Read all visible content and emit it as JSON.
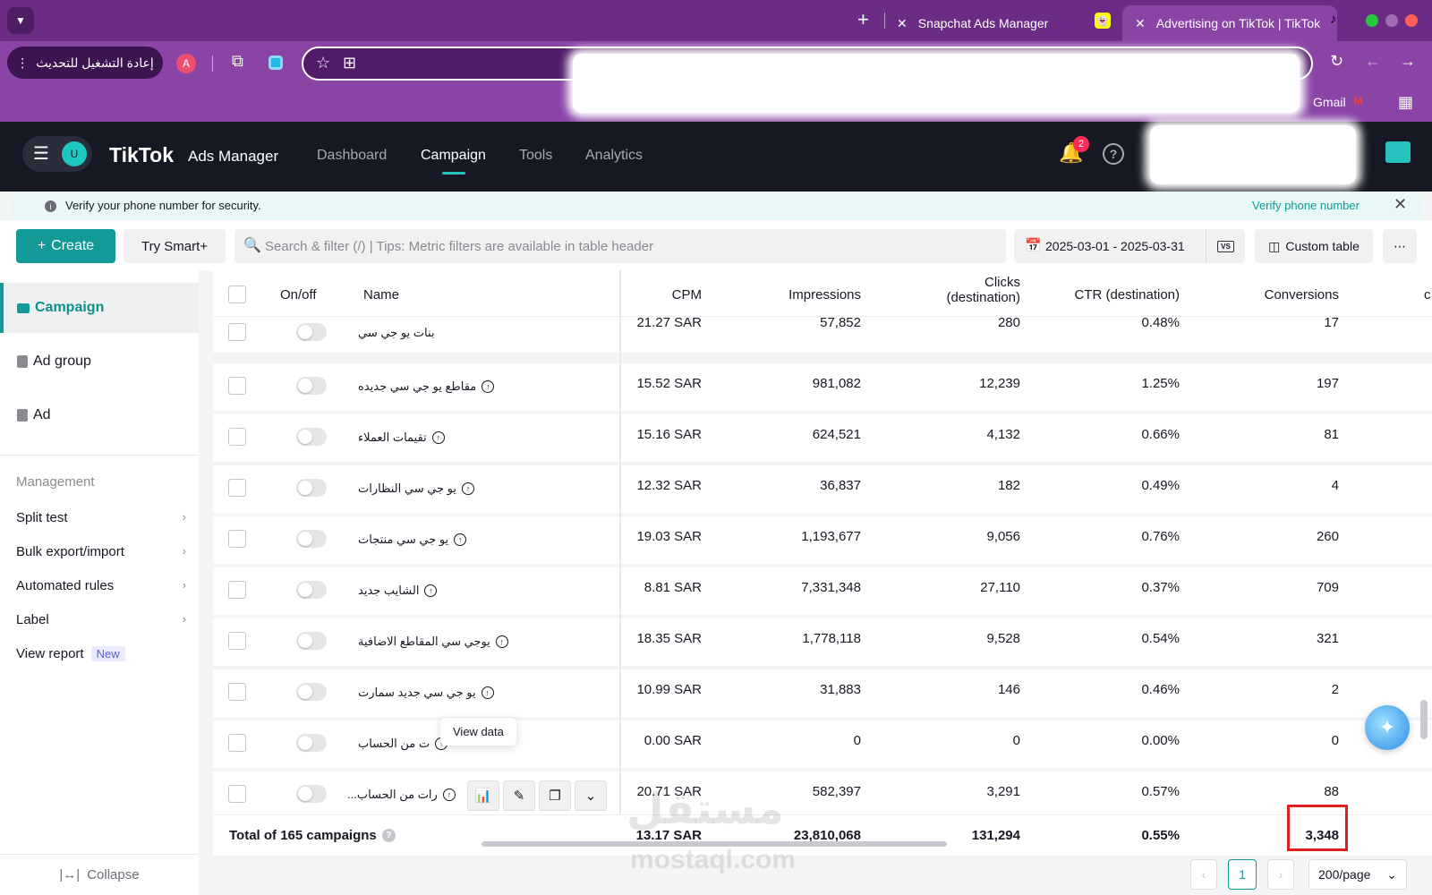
{
  "browser": {
    "tabs": [
      {
        "label": "Snapchat Ads Manager"
      },
      {
        "label": "Advertising on TikTok | TikTok"
      }
    ],
    "restart_label": "إعادة التشغيل للتحديث",
    "profile_initial": "A",
    "gmail_label": "Gmail"
  },
  "header": {
    "user_initial": "U",
    "logo_text": "TikTok",
    "logo_sub": "Ads Manager",
    "nav": [
      "Dashboard",
      "Campaign",
      "Tools",
      "Analytics"
    ],
    "active_nav": "Campaign",
    "notification_count": "2"
  },
  "banner": {
    "message": "Verify your phone number for security.",
    "link": "Verify phone number"
  },
  "actionbar": {
    "create_label": "Create",
    "smart_label": "Try Smart+",
    "search_placeholder": "Search & filter (/) | Tips: Metric filters are available in table header",
    "date_range": "2025-03-01 - 2025-03-31",
    "vs_label": "VS",
    "custom_table_label": "Custom table"
  },
  "sidebar": {
    "levels": [
      "Campaign",
      "Ad group",
      "Ad"
    ],
    "management_title": "Management",
    "management_items": [
      "Split test",
      "Bulk export/import",
      "Automated rules",
      "Label",
      "View report"
    ],
    "new_badge": "New",
    "collapse_label": "Collapse"
  },
  "table": {
    "headers": {
      "onoff": "On/off",
      "name": "Name",
      "cpm": "CPM",
      "impressions": "Impressions",
      "clicks": "Clicks",
      "clicks_sub": "(destination)",
      "ctr": "CTR (destination)",
      "conversions": "Conversions"
    },
    "rows": [
      {
        "name": "بنات يو جي سي",
        "cpm": "21.27 SAR",
        "impressions": "57,852",
        "clicks": "280",
        "ctr": "0.48%",
        "conversions": "17"
      },
      {
        "name": "مقاطع يو جي سي جديده",
        "cpm": "15.52 SAR",
        "impressions": "981,082",
        "clicks": "12,239",
        "ctr": "1.25%",
        "conversions": "197"
      },
      {
        "name": "تقيمات العملاء",
        "cpm": "15.16 SAR",
        "impressions": "624,521",
        "clicks": "4,132",
        "ctr": "0.66%",
        "conversions": "81"
      },
      {
        "name": "يو جي سي النظارات",
        "cpm": "12.32 SAR",
        "impressions": "36,837",
        "clicks": "182",
        "ctr": "0.49%",
        "conversions": "4"
      },
      {
        "name": "يو جي سي منتجات",
        "cpm": "19.03 SAR",
        "impressions": "1,193,677",
        "clicks": "9,056",
        "ctr": "0.76%",
        "conversions": "260"
      },
      {
        "name": "الشايب جديد",
        "cpm": "8.81 SAR",
        "impressions": "7,331,348",
        "clicks": "27,110",
        "ctr": "0.37%",
        "conversions": "709"
      },
      {
        "name": "يوجي سي المقاطع الاضافية",
        "cpm": "18.35 SAR",
        "impressions": "1,778,118",
        "clicks": "9,528",
        "ctr": "0.54%",
        "conversions": "321"
      },
      {
        "name": "يو جي سي جديد سمارت",
        "cpm": "10.99 SAR",
        "impressions": "31,883",
        "clicks": "146",
        "ctr": "0.46%",
        "conversions": "2"
      },
      {
        "name": "ت من الحساب",
        "cpm": "0.00 SAR",
        "impressions": "0",
        "clicks": "0",
        "ctr": "0.00%",
        "conversions": "0"
      },
      {
        "name": "...رات من الحساب",
        "cpm": "20.71 SAR",
        "impressions": "582,397",
        "clicks": "3,291",
        "ctr": "0.57%",
        "conversions": "88"
      }
    ],
    "total": {
      "label": "Total of 165 campaigns",
      "cpm": "13.17 SAR",
      "impressions": "23,810,068",
      "clicks": "131,294",
      "ctr": "0.55%",
      "conversions": "3,348"
    },
    "tooltip": "View data",
    "page": "1",
    "page_size": "200/page"
  },
  "watermark": {
    "text": "مستقل",
    "domain": "mostaql.com"
  },
  "colors": {
    "accent": "#129a98",
    "browser_purple": "#8a44a6",
    "header_dark": "#161823"
  }
}
